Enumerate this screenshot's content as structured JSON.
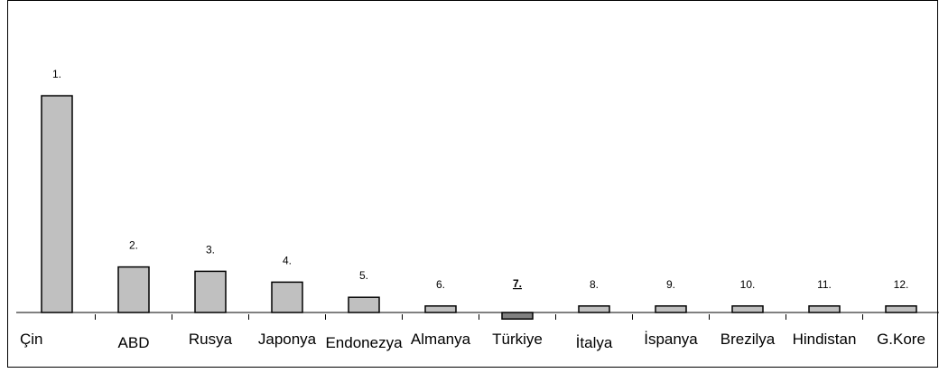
{
  "chart_data": {
    "type": "bar",
    "categories": [
      "Çin",
      "ABD",
      "Rusya",
      "Japonya",
      "Endonezya",
      "Almanya",
      "Türkiye",
      "İtalya",
      "İspanya",
      "Brezilya",
      "Hindistan",
      "G.Kore"
    ],
    "rank_labels": [
      "1.",
      "2.",
      "3.",
      "4.",
      "5.",
      "6.",
      "7.",
      "8.",
      "9.",
      "10.",
      "11.",
      "12."
    ],
    "values": [
      100,
      21,
      19,
      14,
      7,
      3,
      -3,
      3,
      3,
      3,
      3,
      3
    ],
    "highlight_index": 6,
    "bar_color": "#c0c0c0",
    "highlight_color": "#808080",
    "title": "",
    "xlabel": "",
    "ylabel": "",
    "ylim": [
      -10,
      110
    ],
    "grid": false,
    "legend": "none"
  }
}
